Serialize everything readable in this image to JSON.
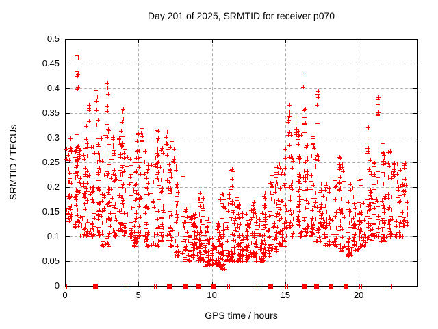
{
  "chart_data": {
    "type": "scatter",
    "title": "Day 201 of 2025, SRMTID for receiver p070",
    "xlabel": "GPS time / hours",
    "ylabel": "SRMTID / TECUs",
    "xlim": [
      0,
      24
    ],
    "ylim": [
      0,
      0.5
    ],
    "xticks": {
      "values": [
        0,
        5,
        10,
        15,
        20
      ],
      "labels": [
        "0",
        "5",
        "10",
        "15",
        "20"
      ]
    },
    "yticks": {
      "values": [
        0,
        0.05,
        0.1,
        0.15,
        0.2,
        0.25,
        0.3,
        0.35,
        0.4,
        0.45,
        0.5
      ],
      "labels": [
        "0",
        "0.05",
        "0.1",
        "0.15",
        "0.2",
        "0.25",
        "0.3",
        "0.35",
        "0.4",
        "0.45",
        "0.5"
      ]
    },
    "grid": true,
    "legend": "none",
    "marker": "plus",
    "marker_color": "#ff0000",
    "grid_color": "#b0b0b0",
    "axis_color": "#000000",
    "background_color": "#ffffff",
    "seed": 42,
    "band_format": "[hour_start, hour_end, n_points, y_min_TECU, y_max_TECU, low_bias]",
    "density_bands": [
      [
        0.02,
        0.5,
        45,
        0.13,
        0.3,
        1.5
      ],
      [
        0.5,
        1.0,
        45,
        0.12,
        0.31,
        1.6
      ],
      [
        1.0,
        1.5,
        40,
        0.1,
        0.28,
        1.5
      ],
      [
        1.5,
        2.0,
        40,
        0.1,
        0.32,
        1.7
      ],
      [
        2.0,
        2.5,
        42,
        0.1,
        0.3,
        1.6
      ],
      [
        2.5,
        3.0,
        42,
        0.08,
        0.32,
        1.6
      ],
      [
        3.0,
        3.5,
        40,
        0.1,
        0.3,
        1.6
      ],
      [
        3.5,
        4.0,
        42,
        0.11,
        0.3,
        1.5
      ],
      [
        4.0,
        4.5,
        40,
        0.1,
        0.28,
        1.7
      ],
      [
        4.5,
        5.0,
        38,
        0.08,
        0.26,
        1.6
      ],
      [
        5.0,
        5.5,
        35,
        0.09,
        0.28,
        1.7
      ],
      [
        5.5,
        6.0,
        32,
        0.08,
        0.25,
        1.7
      ],
      [
        6.0,
        6.5,
        35,
        0.08,
        0.27,
        1.7
      ],
      [
        6.5,
        7.0,
        35,
        0.09,
        0.28,
        1.6
      ],
      [
        7.0,
        7.5,
        35,
        0.08,
        0.3,
        1.9
      ],
      [
        7.5,
        8.0,
        40,
        0.06,
        0.25,
        2.0
      ],
      [
        8.0,
        8.5,
        46,
        0.05,
        0.16,
        1.6
      ],
      [
        8.5,
        9.0,
        46,
        0.055,
        0.15,
        1.6
      ],
      [
        9.0,
        9.5,
        46,
        0.05,
        0.19,
        1.9
      ],
      [
        9.5,
        10.0,
        46,
        0.04,
        0.15,
        1.7
      ],
      [
        10.0,
        10.5,
        46,
        0.04,
        0.13,
        1.6
      ],
      [
        10.5,
        11.0,
        46,
        0.032,
        0.19,
        2.1
      ],
      [
        11.0,
        11.5,
        46,
        0.05,
        0.2,
        2.0
      ],
      [
        11.5,
        12.0,
        46,
        0.05,
        0.17,
        1.9
      ],
      [
        12.0,
        12.5,
        46,
        0.05,
        0.15,
        1.7
      ],
      [
        12.5,
        13.0,
        46,
        0.06,
        0.17,
        1.8
      ],
      [
        13.0,
        13.5,
        46,
        0.05,
        0.15,
        1.7
      ],
      [
        13.5,
        14.0,
        42,
        0.06,
        0.19,
        1.9
      ],
      [
        14.0,
        14.5,
        40,
        0.07,
        0.23,
        1.9
      ],
      [
        14.5,
        15.0,
        38,
        0.08,
        0.26,
        1.8
      ],
      [
        15.0,
        15.5,
        40,
        0.1,
        0.32,
        1.7
      ],
      [
        15.5,
        16.0,
        38,
        0.12,
        0.34,
        1.8
      ],
      [
        16.0,
        16.5,
        36,
        0.1,
        0.33,
        1.8
      ],
      [
        16.5,
        17.0,
        35,
        0.1,
        0.3,
        1.7
      ],
      [
        17.0,
        17.5,
        35,
        0.09,
        0.3,
        1.8
      ],
      [
        17.5,
        18.0,
        35,
        0.08,
        0.21,
        1.5
      ],
      [
        18.0,
        18.5,
        35,
        0.08,
        0.22,
        1.6
      ],
      [
        18.5,
        19.0,
        35,
        0.07,
        0.25,
        1.7
      ],
      [
        19.0,
        19.5,
        35,
        0.06,
        0.23,
        1.8
      ],
      [
        19.5,
        20.0,
        35,
        0.07,
        0.2,
        1.6
      ],
      [
        20.0,
        20.5,
        35,
        0.08,
        0.22,
        1.6
      ],
      [
        20.5,
        21.0,
        35,
        0.09,
        0.26,
        1.7
      ],
      [
        21.0,
        21.5,
        35,
        0.1,
        0.26,
        1.6
      ],
      [
        21.5,
        22.0,
        35,
        0.09,
        0.28,
        1.7
      ],
      [
        22.0,
        22.5,
        36,
        0.1,
        0.28,
        1.7
      ],
      [
        22.5,
        23.0,
        33,
        0.1,
        0.25,
        1.6
      ],
      [
        23.0,
        23.45,
        26,
        0.12,
        0.26,
        1.5
      ]
    ],
    "cluster_format": "[hour_center, y_min_TECU, y_max_TECU, n_points]",
    "clusters": [
      [
        0.85,
        0.39,
        0.47,
        9
      ],
      [
        0.85,
        0.25,
        0.31,
        4
      ],
      [
        1.45,
        0.28,
        0.33,
        5
      ],
      [
        1.65,
        0.33,
        0.37,
        5
      ],
      [
        2.15,
        0.3,
        0.405,
        8
      ],
      [
        2.9,
        0.3,
        0.42,
        9
      ],
      [
        3.3,
        0.28,
        0.31,
        4
      ],
      [
        3.9,
        0.28,
        0.365,
        9
      ],
      [
        4.95,
        0.25,
        0.31,
        6
      ],
      [
        5.2,
        0.29,
        0.335,
        5
      ],
      [
        6.3,
        0.25,
        0.33,
        9
      ],
      [
        6.9,
        0.26,
        0.325,
        7
      ],
      [
        7.4,
        0.25,
        0.3,
        5
      ],
      [
        9.4,
        0.15,
        0.19,
        4
      ],
      [
        11.35,
        0.2,
        0.245,
        5
      ],
      [
        11.7,
        0.15,
        0.2,
        5
      ],
      [
        14.35,
        0.18,
        0.25,
        6
      ],
      [
        15.25,
        0.25,
        0.37,
        10
      ],
      [
        15.7,
        0.28,
        0.35,
        6
      ],
      [
        16.28,
        0.29,
        0.435,
        8
      ],
      [
        16.9,
        0.26,
        0.305,
        5
      ],
      [
        17.2,
        0.24,
        0.4,
        7
      ],
      [
        18.7,
        0.2,
        0.27,
        6
      ],
      [
        20.65,
        0.26,
        0.335,
        6
      ],
      [
        21.32,
        0.345,
        0.395,
        9
      ],
      [
        21.65,
        0.22,
        0.305,
        6
      ],
      [
        22.4,
        0.21,
        0.265,
        6
      ],
      [
        23.15,
        0.17,
        0.26,
        6
      ]
    ],
    "zero_axis_markers": {
      "color": "#ff0000",
      "square_hours": [
        2.05,
        7.1,
        8.2,
        9.1,
        10.05,
        14.0,
        16.3,
        17.1,
        18.1,
        19.1
      ],
      "plus_hours": [
        0.07,
        0.2,
        4.05,
        4.18,
        6.05,
        6.18,
        11.05,
        11.2,
        13.05,
        13.2,
        15.02,
        15.16,
        20.05,
        20.2,
        22.05,
        22.22
      ]
    }
  }
}
